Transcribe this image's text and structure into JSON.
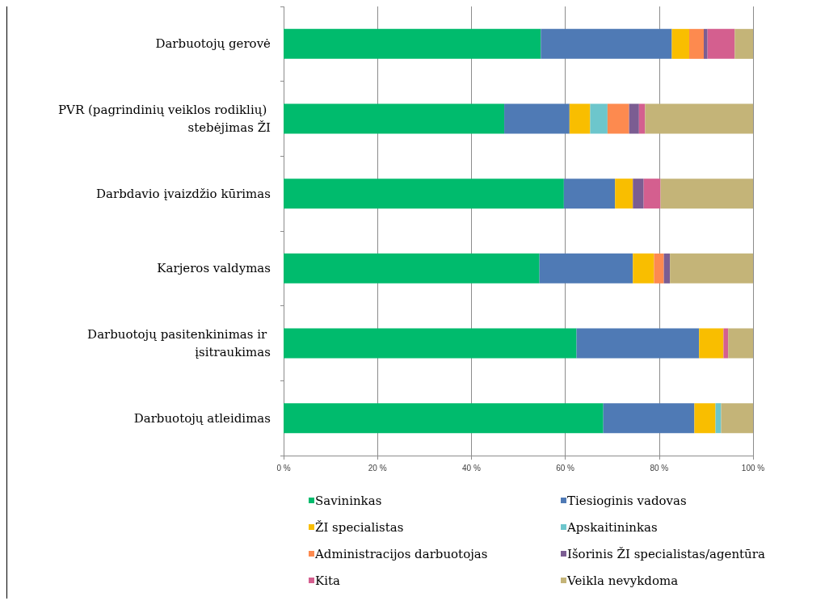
{
  "chart_data": {
    "type": "bar",
    "orientation": "horizontal",
    "stacked": true,
    "categories": [
      "Darbuotojų gerovė",
      "PVR (pagrindinių veiklos rodiklių) stebėjimas ŽI",
      "Darbdavio įvaizdžio kūrimas",
      "Karjeros valdymas",
      "Darbuotojų pasitenkinimas ir įsitraukimas",
      "Darbuotojų atleidimas"
    ],
    "series": [
      {
        "name": "Savininkas",
        "color": "#00bb6d",
        "values": [
          54.8,
          47.0,
          59.7,
          54.5,
          62.4,
          68.1
        ]
      },
      {
        "name": "Tiesioginis vadovas",
        "color": "#4f7ab5",
        "values": [
          27.9,
          13.9,
          10.9,
          19.9,
          26.1,
          19.4
        ]
      },
      {
        "name": "ŽI specialistas",
        "color": "#f9be00",
        "values": [
          3.7,
          4.4,
          3.8,
          4.5,
          5.2,
          4.5
        ]
      },
      {
        "name": "Apskaitininkas",
        "color": "#6dc6cc",
        "values": [
          0,
          3.7,
          0,
          0,
          0,
          1.2
        ]
      },
      {
        "name": "Administracijos darbuotojas",
        "color": "#fd8a4f",
        "values": [
          3.1,
          4.6,
          0,
          2.1,
          0,
          0
        ]
      },
      {
        "name": "Išorinis ŽI specialistas/agentūra",
        "color": "#7b5d92",
        "values": [
          0.8,
          2.1,
          2.3,
          1.3,
          0,
          0
        ]
      },
      {
        "name": "Kita",
        "color": "#d45f8f",
        "values": [
          5.8,
          1.3,
          3.6,
          0,
          1.0,
          0
        ]
      },
      {
        "name": "Veikla nevykdoma",
        "color": "#c4b478",
        "values": [
          3.9,
          23.0,
          19.7,
          17.7,
          5.3,
          6.8
        ]
      }
    ],
    "xlim": [
      0,
      100
    ],
    "xticks": [
      {
        "value": 0,
        "label": "0 %"
      },
      {
        "value": 20,
        "label": "20 %"
      },
      {
        "value": 40,
        "label": "40 %"
      },
      {
        "value": 60,
        "label": "60 %"
      },
      {
        "value": 80,
        "label": "80 %"
      },
      {
        "value": 100,
        "label": "100 %"
      }
    ],
    "grid": "x",
    "legend": "bottom"
  }
}
